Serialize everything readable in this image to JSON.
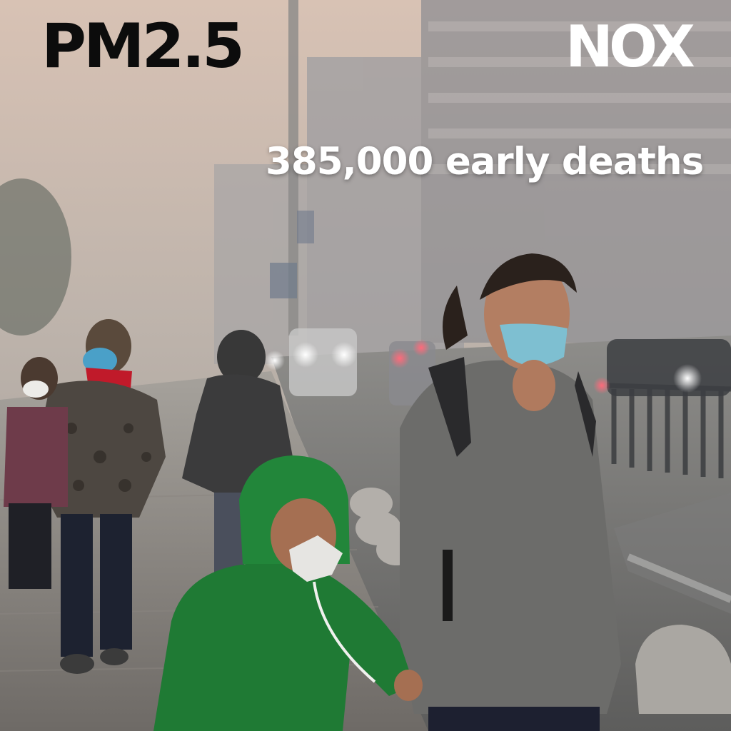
{
  "overlay": {
    "pollutant_label": "PM2.5",
    "pollutant_label_secondary": "NOX",
    "statistic": "385,000 early deaths"
  },
  "colors": {
    "smog_top": "#d9c4b6",
    "smog_mid": "#a9a7a3",
    "road": "#6f6f6f",
    "child_jacket": "#1f7a34",
    "woman_coat": "#6d6d6b",
    "mask": "#7ebfd1"
  }
}
